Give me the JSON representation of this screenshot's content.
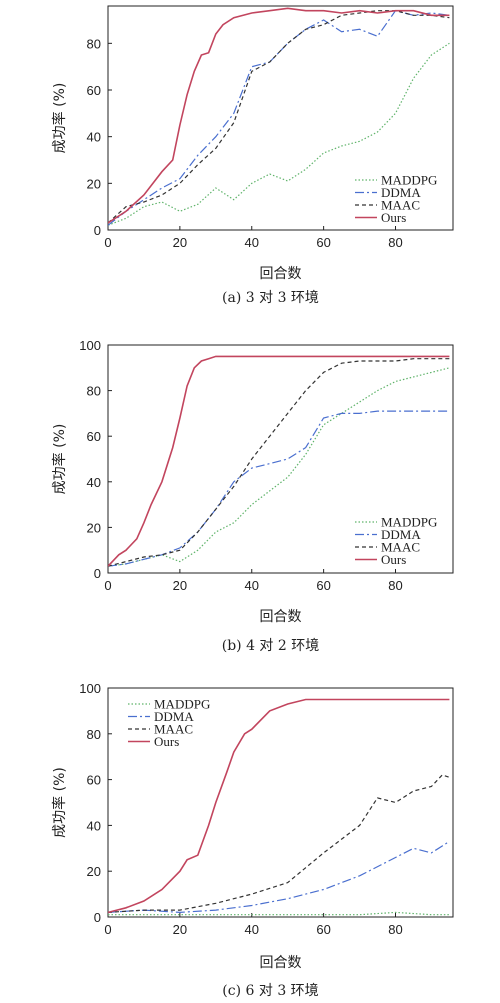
{
  "chart_data": [
    {
      "type": "line",
      "caption": "(a) 3 对 3 环境",
      "xlabel": "回合数",
      "ylabel": "成功率 (%)",
      "xlim": [
        0,
        96
      ],
      "ylim": [
        0,
        96
      ],
      "xticks": [
        0,
        20,
        40,
        60,
        80
      ],
      "yticks": [
        0,
        20,
        40,
        60,
        80
      ],
      "grid": false,
      "legend_position": "bottom-right",
      "series": [
        {
          "name": "MADDPG",
          "color": "#5fb36a",
          "dash": "1.5,2",
          "x": [
            0,
            5,
            10,
            15,
            20,
            25,
            30,
            35,
            40,
            45,
            50,
            55,
            60,
            65,
            70,
            75,
            80,
            85,
            90,
            95
          ],
          "y": [
            2,
            5,
            10,
            12,
            8,
            11,
            18,
            13,
            20,
            24,
            21,
            26,
            33,
            36,
            38,
            42,
            50,
            65,
            75,
            80
          ]
        },
        {
          "name": "DDMA",
          "color": "#4a6fcf",
          "dash": "9,3,2,3",
          "x": [
            0,
            5,
            10,
            15,
            20,
            25,
            30,
            35,
            40,
            45,
            50,
            55,
            60,
            65,
            70,
            75,
            80,
            85,
            90,
            95
          ],
          "y": [
            2,
            8,
            13,
            18,
            22,
            32,
            40,
            50,
            70,
            72,
            80,
            86,
            90,
            85,
            86,
            83,
            94,
            92,
            93,
            92
          ]
        },
        {
          "name": "MAAC",
          "color": "#333333",
          "dash": "4,3",
          "x": [
            0,
            5,
            10,
            15,
            20,
            25,
            30,
            35,
            40,
            45,
            50,
            55,
            60,
            65,
            70,
            75,
            80,
            85,
            90,
            95
          ],
          "y": [
            3,
            10,
            12,
            15,
            20,
            28,
            35,
            46,
            68,
            72,
            80,
            86,
            88,
            92,
            93,
            94,
            94,
            92,
            92,
            91
          ]
        },
        {
          "name": "Ours",
          "color": "#c2455e",
          "dash": "",
          "x": [
            0,
            5,
            10,
            15,
            18,
            20,
            22,
            24,
            26,
            28,
            30,
            32,
            35,
            40,
            45,
            50,
            55,
            60,
            65,
            70,
            75,
            80,
            85,
            90,
            95
          ],
          "y": [
            3,
            8,
            15,
            25,
            30,
            45,
            58,
            68,
            75,
            76,
            84,
            88,
            91,
            93,
            94,
            95,
            94,
            94,
            93,
            94,
            93,
            94,
            94,
            92,
            92
          ]
        }
      ]
    },
    {
      "type": "line",
      "caption": "(b) 4 对 2 环境",
      "xlabel": "回合数",
      "ylabel": "成功率 (%)",
      "xlim": [
        0,
        96
      ],
      "ylim": [
        0,
        100
      ],
      "xticks": [
        0,
        20,
        40,
        60,
        80
      ],
      "yticks": [
        0,
        20,
        40,
        60,
        80,
        100
      ],
      "grid": false,
      "legend_position": "bottom-right",
      "series": [
        {
          "name": "MADDPG",
          "color": "#5fb36a",
          "dash": "1.5,2",
          "x": [
            0,
            5,
            10,
            15,
            20,
            25,
            30,
            35,
            40,
            45,
            50,
            55,
            60,
            65,
            70,
            75,
            80,
            85,
            90,
            95
          ],
          "y": [
            3,
            4,
            6,
            8,
            5,
            10,
            18,
            22,
            30,
            36,
            42,
            52,
            65,
            70,
            75,
            80,
            84,
            86,
            88,
            90
          ]
        },
        {
          "name": "DDMA",
          "color": "#4a6fcf",
          "dash": "9,3,2,3",
          "x": [
            0,
            5,
            10,
            15,
            20,
            25,
            30,
            35,
            40,
            45,
            50,
            55,
            60,
            65,
            70,
            75,
            80,
            85,
            90,
            95
          ],
          "y": [
            3,
            4,
            6,
            8,
            11,
            18,
            28,
            40,
            46,
            48,
            50,
            55,
            68,
            70,
            70,
            71,
            71,
            71,
            71,
            71
          ]
        },
        {
          "name": "MAAC",
          "color": "#333333",
          "dash": "4,3",
          "x": [
            0,
            5,
            10,
            15,
            20,
            25,
            30,
            35,
            40,
            45,
            50,
            55,
            60,
            65,
            70,
            75,
            80,
            85,
            90,
            95
          ],
          "y": [
            3,
            5,
            7,
            8,
            10,
            18,
            28,
            38,
            50,
            60,
            70,
            80,
            88,
            92,
            93,
            93,
            93,
            94,
            94,
            94
          ]
        },
        {
          "name": "Ours",
          "color": "#c2455e",
          "dash": "",
          "x": [
            0,
            3,
            5,
            8,
            10,
            12,
            15,
            18,
            20,
            22,
            24,
            26,
            28,
            30,
            35,
            40,
            50,
            60,
            70,
            80,
            90,
            95
          ],
          "y": [
            3,
            8,
            10,
            15,
            22,
            30,
            40,
            55,
            68,
            82,
            90,
            93,
            94,
            95,
            95,
            95,
            95,
            95,
            95,
            95,
            95,
            95
          ]
        }
      ]
    },
    {
      "type": "line",
      "caption": "(c) 6 对 3 环境",
      "xlabel": "回合数",
      "ylabel": "成功率 (%)",
      "xlim": [
        0,
        96
      ],
      "ylim": [
        0,
        100
      ],
      "xticks": [
        0,
        20,
        40,
        60,
        80
      ],
      "yticks": [
        0,
        20,
        40,
        60,
        80,
        100
      ],
      "grid": false,
      "legend_position": "top-left",
      "series": [
        {
          "name": "MADDPG",
          "color": "#5fb36a",
          "dash": "1.5,2",
          "x": [
            0,
            10,
            20,
            30,
            40,
            50,
            60,
            70,
            80,
            90,
            95
          ],
          "y": [
            1,
            1,
            1,
            1,
            1,
            1,
            1,
            1,
            2,
            1,
            1
          ]
        },
        {
          "name": "DDMA",
          "color": "#4a6fcf",
          "dash": "9,3,2,3",
          "x": [
            0,
            10,
            20,
            30,
            40,
            50,
            60,
            70,
            80,
            85,
            90,
            95
          ],
          "y": [
            2,
            3,
            2,
            3,
            5,
            8,
            12,
            18,
            26,
            30,
            28,
            33
          ]
        },
        {
          "name": "MAAC",
          "color": "#333333",
          "dash": "4,3",
          "x": [
            0,
            10,
            20,
            30,
            40,
            50,
            60,
            70,
            75,
            80,
            85,
            90,
            93,
            95
          ],
          "y": [
            2,
            3,
            3,
            6,
            10,
            15,
            28,
            40,
            52,
            50,
            55,
            57,
            62,
            61
          ]
        },
        {
          "name": "Ours",
          "color": "#c2455e",
          "dash": "",
          "x": [
            0,
            5,
            10,
            15,
            20,
            22,
            25,
            28,
            30,
            33,
            35,
            38,
            40,
            45,
            50,
            55,
            60,
            70,
            80,
            90,
            95
          ],
          "y": [
            2,
            4,
            7,
            12,
            20,
            25,
            27,
            40,
            50,
            63,
            72,
            80,
            82,
            90,
            93,
            95,
            95,
            95,
            95,
            95,
            95
          ]
        }
      ]
    }
  ]
}
